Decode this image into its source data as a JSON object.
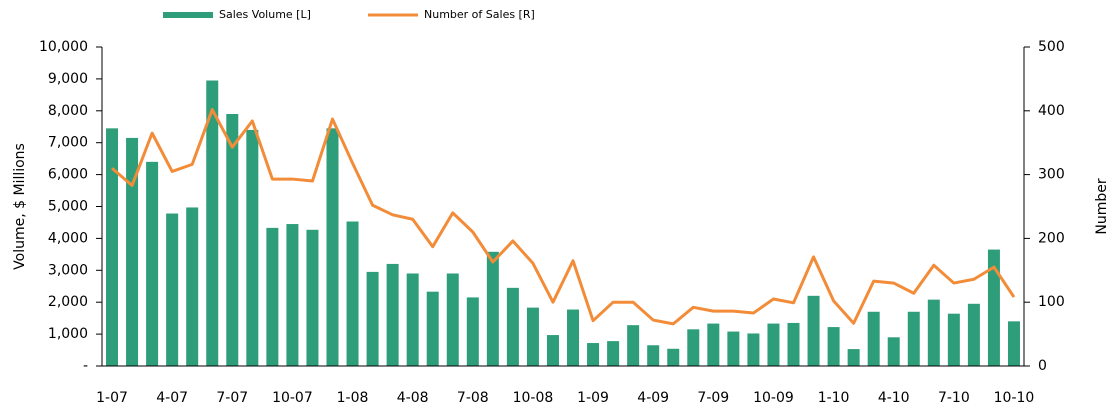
{
  "chart_data": {
    "type": "bar_line",
    "ylabel": "Volume, $ Millions",
    "y2label": "Number",
    "categories": [
      "1-07",
      null,
      null,
      "4-07",
      null,
      null,
      "7-07",
      null,
      null,
      "10-07",
      null,
      null,
      "1-08",
      null,
      null,
      "4-08",
      null,
      null,
      "7-08",
      null,
      null,
      "10-08",
      null,
      null,
      "1-09",
      null,
      null,
      "4-09",
      null,
      null,
      "7-09",
      null,
      null,
      "10-09",
      null,
      null,
      "1-10",
      null,
      null,
      "4-10",
      null,
      null,
      "7-10",
      null,
      null,
      "10-10"
    ],
    "series": [
      {
        "name": "Sales Volume [L]",
        "color": "#2e9e7a",
        "type": "bar",
        "axis": "y",
        "values": [
          7450,
          7150,
          6400,
          4780,
          4970,
          8950,
          7900,
          7400,
          4330,
          4450,
          4270,
          7450,
          4530,
          2950,
          3200,
          2900,
          2330,
          2900,
          2150,
          3580,
          2450,
          1830,
          970,
          1770,
          720,
          780,
          1280,
          650,
          540,
          1150,
          1330,
          1080,
          1020,
          1330,
          1350,
          2200,
          1220,
          530,
          1700,
          900,
          1700,
          2080,
          1640,
          1950,
          3650,
          1400
        ]
      },
      {
        "name": "Number of Sales [R]",
        "color": "#f28c38",
        "type": "line",
        "axis": "y2",
        "values": [
          310,
          283,
          365,
          305,
          316,
          402,
          343,
          384,
          293,
          293,
          290,
          387,
          318,
          252,
          237,
          230,
          187,
          240,
          210,
          163,
          196,
          161,
          100,
          165,
          71,
          100,
          100,
          72,
          66,
          92,
          86,
          86,
          83,
          105,
          99,
          171,
          102,
          67,
          133,
          130,
          114,
          158,
          130,
          136,
          155,
          108
        ]
      }
    ],
    "ylim": [
      0,
      10000
    ],
    "yticks": [
      {
        "value": 0,
        "label": "-"
      },
      {
        "value": 1000,
        "label": "1,000"
      },
      {
        "value": 2000,
        "label": "2,000"
      },
      {
        "value": 3000,
        "label": "3,000"
      },
      {
        "value": 4000,
        "label": "4,000"
      },
      {
        "value": 5000,
        "label": "5,000"
      },
      {
        "value": 6000,
        "label": "6,000"
      },
      {
        "value": 7000,
        "label": "7,000"
      },
      {
        "value": 8000,
        "label": "8,000"
      },
      {
        "value": 9000,
        "label": "9,000"
      },
      {
        "value": 10000,
        "label": "10,000"
      }
    ],
    "y2lim": [
      0,
      500
    ],
    "y2ticks": [
      0,
      100,
      200,
      300,
      400,
      500
    ],
    "legend": "top"
  }
}
